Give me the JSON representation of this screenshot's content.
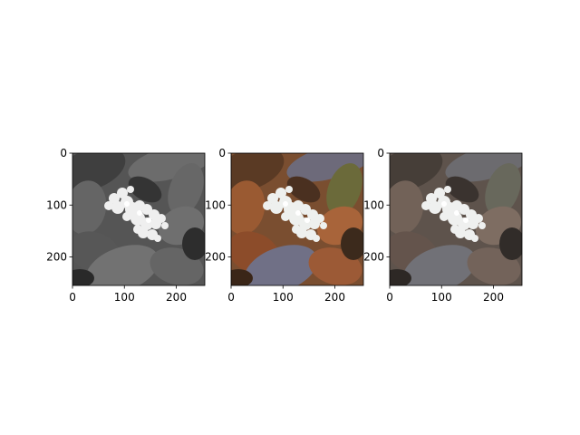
{
  "figure": {
    "background": "#ffffff"
  },
  "chart_data": [
    {
      "type": "image",
      "rendering": "grayscale",
      "title": "",
      "xlabel": "",
      "ylabel": "",
      "xlim": [
        0,
        255
      ],
      "ylim": [
        255,
        0
      ],
      "x_ticks": [
        0,
        100,
        200
      ],
      "y_ticks": [
        0,
        100,
        200
      ],
      "grid": false
    },
    {
      "type": "image",
      "rendering": "color",
      "title": "",
      "xlabel": "",
      "ylabel": "",
      "xlim": [
        0,
        255
      ],
      "ylim": [
        255,
        0
      ],
      "x_ticks": [
        0,
        100,
        200
      ],
      "y_ticks": [
        0,
        100,
        200
      ],
      "grid": false
    },
    {
      "type": "image",
      "rendering": "grayscale-with-partial-color",
      "title": "",
      "xlabel": "",
      "ylabel": "",
      "xlim": [
        0,
        255
      ],
      "ylim": [
        255,
        0
      ],
      "x_ticks": [
        0,
        100,
        200
      ],
      "y_ticks": [
        0,
        100,
        200
      ],
      "grid": false
    }
  ]
}
